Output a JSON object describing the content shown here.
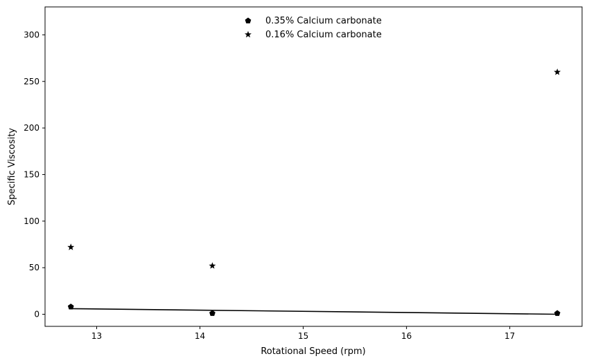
{
  "chart_data": {
    "type": "scatter",
    "title": "",
    "xlabel": "Rotational Speed (rpm)",
    "ylabel": "Specific Viscosity",
    "xlim": [
      12.5,
      17.7
    ],
    "ylim": [
      -13,
      330
    ],
    "xticks": [
      13,
      14,
      15,
      16,
      17
    ],
    "yticks": [
      0,
      50,
      100,
      150,
      200,
      250,
      300
    ],
    "grid": false,
    "legend_position": "top-center",
    "series": [
      {
        "name": "0.35% Calcium carbonate",
        "marker": "pentagon",
        "color": "#000000",
        "x": [
          12.75,
          14.12,
          17.46
        ],
        "y": [
          8,
          1,
          1
        ]
      },
      {
        "name": "0.16% Calcium carbonate",
        "marker": "star",
        "color": "#000000",
        "x": [
          12.75,
          14.12,
          17.46
        ],
        "y": [
          72,
          52,
          260
        ]
      }
    ],
    "fit_line": {
      "color": "#000000",
      "x": [
        12.75,
        17.46
      ],
      "y": [
        6,
        0
      ]
    }
  }
}
